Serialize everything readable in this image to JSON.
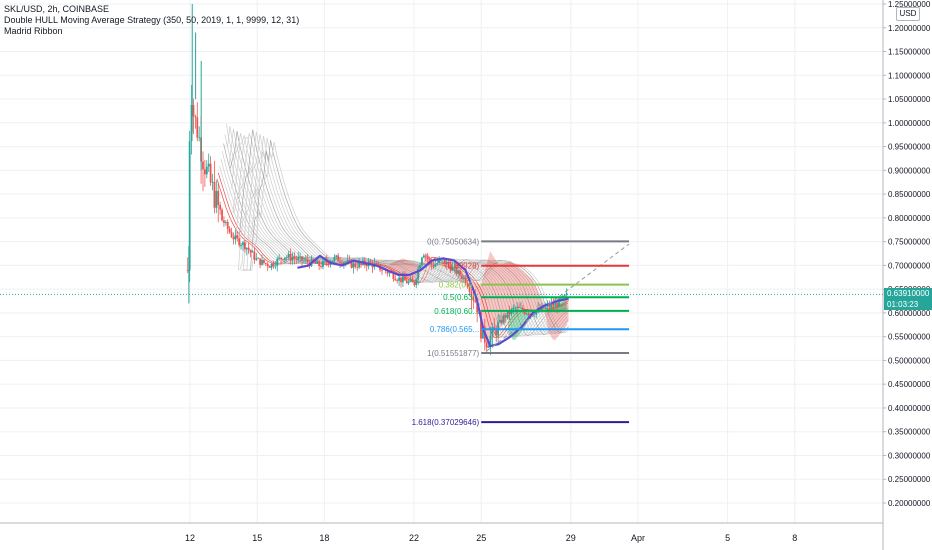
{
  "legend": {
    "symbol_line": "SKL/USD, 2h, COINBASE",
    "indicator_1": "Double HULL Moving Average Strategy (350, 50, 2019, 1, 1, 9999, 12, 31)",
    "indicator_2": "Madrid Ribbon"
  },
  "currency_button": "USD",
  "last_price": {
    "value": "0.63910000",
    "countdown": "01:03:23"
  },
  "colors": {
    "up": "#26a69a",
    "down": "#ef5350",
    "hull": "#5b4ccc",
    "ribbon_red": "#e53935",
    "ribbon_green": "#00b050",
    "grid": "#eef0f3",
    "axis_text": "#131722"
  },
  "chart_data": {
    "type": "candlestick",
    "title": "SKL/USD, 2h, COINBASE",
    "y_axis": {
      "ylim": [
        0.2,
        1.25
      ],
      "tick_labels": [
        "0.20000000",
        "0.25000000",
        "0.30000000",
        "0.35000000",
        "0.40000000",
        "0.45000000",
        "0.50000000",
        "0.55000000",
        "0.60000000",
        "0.65000000",
        "0.70000000",
        "0.75000000",
        "0.80000000",
        "0.85000000",
        "0.90000000",
        "0.95000000",
        "1.00000000",
        "1.05000000",
        "1.10000000",
        "1.15000000",
        "1.20000000",
        "1.25000000"
      ],
      "tick_values": [
        0.2,
        0.25,
        0.3,
        0.35,
        0.4,
        0.45,
        0.5,
        0.55,
        0.6,
        0.65,
        0.7,
        0.75,
        0.8,
        0.85,
        0.9,
        0.95,
        1.0,
        1.05,
        1.1,
        1.15,
        1.2,
        1.25
      ]
    },
    "x_axis": {
      "tick_labels": [
        "12",
        "15",
        "18",
        "22",
        "25",
        "29",
        "Apr",
        "5",
        "8"
      ],
      "tick_day_index": [
        0,
        3,
        6,
        10,
        13,
        17,
        20,
        24,
        27
      ]
    },
    "grid": true,
    "price_series_points": [
      {
        "x": -0.05,
        "y": 0.69
      },
      {
        "x": 0.0,
        "y": 1.1
      },
      {
        "x": 0.15,
        "y": 1.02
      },
      {
        "x": 0.35,
        "y": 0.98
      },
      {
        "x": 0.6,
        "y": 0.92
      },
      {
        "x": 1.0,
        "y": 0.86
      },
      {
        "x": 1.4,
        "y": 0.8
      },
      {
        "x": 1.9,
        "y": 0.76
      },
      {
        "x": 2.5,
        "y": 0.74
      },
      {
        "x": 3.0,
        "y": 0.71
      },
      {
        "x": 3.6,
        "y": 0.7
      },
      {
        "x": 4.2,
        "y": 0.72
      },
      {
        "x": 5.0,
        "y": 0.71
      },
      {
        "x": 5.8,
        "y": 0.7
      },
      {
        "x": 6.5,
        "y": 0.715
      },
      {
        "x": 7.3,
        "y": 0.7
      },
      {
        "x": 8.0,
        "y": 0.705
      },
      {
        "x": 8.7,
        "y": 0.69
      },
      {
        "x": 9.4,
        "y": 0.67
      },
      {
        "x": 10.0,
        "y": 0.66
      },
      {
        "x": 10.4,
        "y": 0.73
      },
      {
        "x": 10.8,
        "y": 0.7
      },
      {
        "x": 11.3,
        "y": 0.71
      },
      {
        "x": 11.8,
        "y": 0.69
      },
      {
        "x": 12.3,
        "y": 0.67
      },
      {
        "x": 12.8,
        "y": 0.62
      },
      {
        "x": 13.0,
        "y": 0.56
      },
      {
        "x": 13.25,
        "y": 0.54
      },
      {
        "x": 13.6,
        "y": 0.56
      },
      {
        "x": 14.0,
        "y": 0.59
      },
      {
        "x": 14.5,
        "y": 0.61
      },
      {
        "x": 15.2,
        "y": 0.6
      },
      {
        "x": 15.8,
        "y": 0.61
      },
      {
        "x": 16.4,
        "y": 0.62
      },
      {
        "x": 16.9,
        "y": 0.639
      }
    ],
    "hull_series_points": [
      {
        "x": 4.8,
        "y": 0.695
      },
      {
        "x": 5.3,
        "y": 0.7
      },
      {
        "x": 5.8,
        "y": 0.72
      },
      {
        "x": 6.3,
        "y": 0.705
      },
      {
        "x": 6.8,
        "y": 0.7
      },
      {
        "x": 7.3,
        "y": 0.71
      },
      {
        "x": 7.8,
        "y": 0.705
      },
      {
        "x": 8.3,
        "y": 0.7
      },
      {
        "x": 8.8,
        "y": 0.69
      },
      {
        "x": 9.3,
        "y": 0.68
      },
      {
        "x": 9.8,
        "y": 0.68
      },
      {
        "x": 10.3,
        "y": 0.69
      },
      {
        "x": 10.8,
        "y": 0.71
      },
      {
        "x": 11.3,
        "y": 0.715
      },
      {
        "x": 11.8,
        "y": 0.71
      },
      {
        "x": 12.3,
        "y": 0.69
      },
      {
        "x": 12.8,
        "y": 0.63
      },
      {
        "x": 13.1,
        "y": 0.565
      },
      {
        "x": 13.4,
        "y": 0.53
      },
      {
        "x": 13.8,
        "y": 0.535
      },
      {
        "x": 14.3,
        "y": 0.55
      },
      {
        "x": 14.8,
        "y": 0.57
      },
      {
        "x": 15.3,
        "y": 0.6
      },
      {
        "x": 15.8,
        "y": 0.615
      },
      {
        "x": 16.4,
        "y": 0.625
      },
      {
        "x": 16.9,
        "y": 0.63
      }
    ],
    "fibonacci": {
      "x_start": 13.0,
      "x_end": 19.6,
      "levels": [
        {
          "label": "0(0.75050634)",
          "value": 0.7505,
          "color": "#787b86"
        },
        {
          "label": "(0.69928)",
          "value": 0.6993,
          "color": "#e53935"
        },
        {
          "label": "0.382(0.6...",
          "value": 0.6596,
          "color": "#8bc34a"
        },
        {
          "label": "0.5(0.63...",
          "value": 0.633,
          "color": "#00b050"
        },
        {
          "label": "0.618(0.60...",
          "value": 0.6042,
          "color": "#00b050"
        },
        {
          "label": "0.786(0.565...",
          "value": 0.5657,
          "color": "#2196f3"
        },
        {
          "label": "1(0.51551877)",
          "value": 0.5155,
          "color": "#787b86"
        },
        {
          "label": "1.618(0.37029646)",
          "value": 0.3703,
          "color": "#311b92"
        }
      ],
      "trend_line": [
        {
          "x": 13.25,
          "y": 0.52
        },
        {
          "x": 19.6,
          "y": 0.745
        }
      ]
    },
    "current_price": 0.6391
  }
}
